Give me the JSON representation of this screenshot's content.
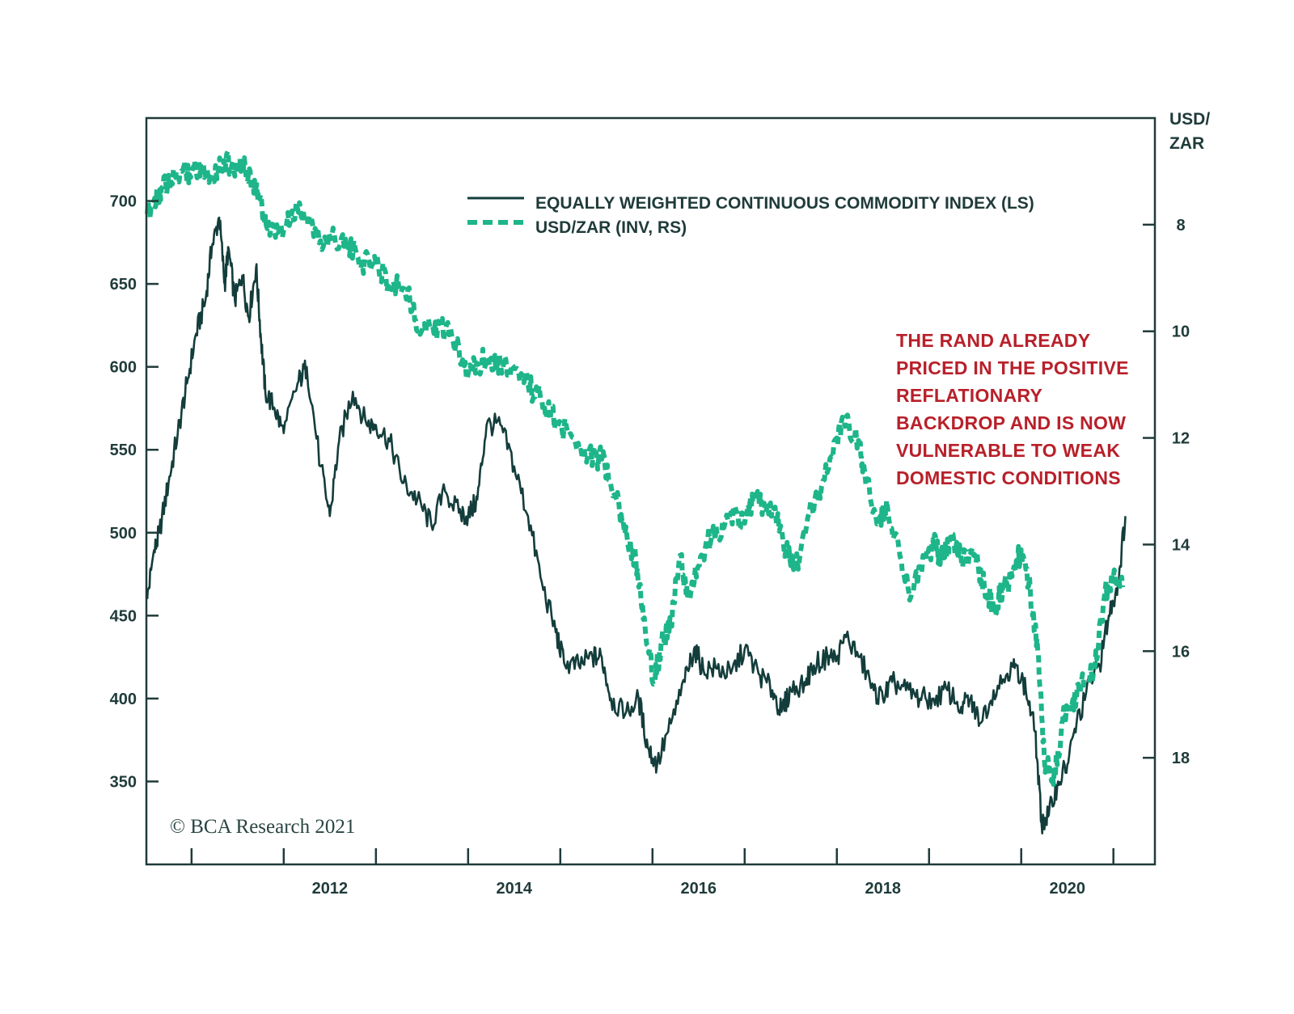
{
  "chart_data": {
    "type": "line",
    "title": "",
    "xlabel": "",
    "xlim": [
      2010.51,
      2021.45
    ],
    "x_tick_labels": [
      "2012",
      "2014",
      "2016",
      "2018",
      "2020"
    ],
    "x_ticks_years": [
      2011,
      2012,
      2013,
      2014,
      2015,
      2016,
      2017,
      2018,
      2019,
      2020,
      2021
    ],
    "left_axis": {
      "label": "",
      "ylim": [
        300,
        750
      ],
      "ticks": [
        350,
        400,
        450,
        500,
        550,
        600,
        650,
        700
      ]
    },
    "right_axis": {
      "label_line1": "USD/",
      "label_line2": "ZAR",
      "ylim": [
        6,
        20
      ],
      "inverted": true,
      "ticks": [
        8,
        10,
        12,
        14,
        16,
        18
      ]
    },
    "legend": {
      "placement": "top-center",
      "entries": [
        {
          "label": "EQUALLY WEIGHTED CONTINUOUS COMMODITY INDEX (LS)",
          "style": "solid",
          "color": "#133d3b"
        },
        {
          "label": "USD/ZAR (INV, RS)",
          "style": "dashed",
          "color": "#1db589"
        }
      ]
    },
    "series": [
      {
        "name": "EQUALLY WEIGHTED CONTINUOUS COMMODITY INDEX (LS)",
        "axis": "left",
        "color": "#133d3b",
        "x": [
          2010.52,
          2010.58,
          2010.65,
          2010.75,
          2010.85,
          2010.95,
          2011.05,
          2011.15,
          2011.22,
          2011.3,
          2011.36,
          2011.4,
          2011.47,
          2011.55,
          2011.62,
          2011.7,
          2011.75,
          2011.8,
          2011.9,
          2012.0,
          2012.15,
          2012.25,
          2012.4,
          2012.5,
          2012.6,
          2012.75,
          2012.9,
          2013.0,
          2013.15,
          2013.3,
          2013.45,
          2013.6,
          2013.75,
          2013.9,
          2014.0,
          2014.1,
          2014.2,
          2014.35,
          2014.5,
          2014.65,
          2014.8,
          2014.95,
          2015.05,
          2015.2,
          2015.35,
          2015.45,
          2015.55,
          2015.7,
          2015.85,
          2015.95,
          2016.05,
          2016.2,
          2016.35,
          2016.45,
          2016.55,
          2016.7,
          2016.85,
          2017.0,
          2017.15,
          2017.3,
          2017.4,
          2017.5,
          2017.65,
          2017.75,
          2017.9,
          2018.0,
          2018.1,
          2018.25,
          2018.4,
          2018.5,
          2018.6,
          2018.75,
          2018.9,
          2019.05,
          2019.2,
          2019.35,
          2019.45,
          2019.55,
          2019.7,
          2019.85,
          2019.95,
          2020.05,
          2020.15,
          2020.22,
          2020.3,
          2020.4,
          2020.5,
          2020.6,
          2020.75,
          2020.85,
          2020.95,
          2021.05,
          2021.13
        ],
        "values": [
          460,
          485,
          500,
          530,
          560,
          590,
          620,
          640,
          672,
          690,
          650,
          672,
          640,
          655,
          630,
          660,
          620,
          585,
          575,
          560,
          590,
          600,
          540,
          510,
          555,
          585,
          565,
          565,
          555,
          530,
          520,
          505,
          525,
          512,
          510,
          520,
          565,
          565,
          540,
          510,
          470,
          440,
          420,
          420,
          425,
          425,
          400,
          390,
          400,
          370,
          360,
          385,
          410,
          430,
          418,
          418,
          415,
          430,
          415,
          405,
          392,
          405,
          410,
          420,
          425,
          425,
          437,
          425,
          405,
          400,
          410,
          405,
          400,
          400,
          405,
          395,
          400,
          385,
          405,
          415,
          420,
          405,
          380,
          325,
          330,
          350,
          360,
          385,
          410,
          420,
          450,
          470,
          510
        ]
      },
      {
        "name": "USD/ZAR (INV, RS)",
        "axis": "right",
        "color": "#1db589",
        "x": [
          2010.52,
          2010.6,
          2010.68,
          2010.78,
          2010.9,
          2011.0,
          2011.1,
          2011.2,
          2011.35,
          2011.5,
          2011.62,
          2011.7,
          2011.78,
          2011.85,
          2012.0,
          2012.15,
          2012.25,
          2012.4,
          2012.55,
          2012.7,
          2012.85,
          2013.0,
          2013.15,
          2013.35,
          2013.45,
          2013.6,
          2013.75,
          2013.9,
          2014.0,
          2014.1,
          2014.25,
          2014.35,
          2014.5,
          2014.65,
          2014.8,
          2014.95,
          2015.15,
          2015.3,
          2015.45,
          2015.6,
          2015.7,
          2015.82,
          2015.9,
          2016.02,
          2016.1,
          2016.2,
          2016.3,
          2016.38,
          2016.5,
          2016.6,
          2016.7,
          2016.85,
          2017.0,
          2017.1,
          2017.2,
          2017.3,
          2017.45,
          2017.55,
          2017.7,
          2017.85,
          2018.0,
          2018.1,
          2018.25,
          2018.3,
          2018.45,
          2018.55,
          2018.7,
          2018.8,
          2018.95,
          2019.05,
          2019.15,
          2019.25,
          2019.35,
          2019.5,
          2019.6,
          2019.7,
          2019.8,
          2019.9,
          2020.0,
          2020.1,
          2020.18,
          2020.25,
          2020.35,
          2020.45,
          2020.55,
          2020.65,
          2020.8,
          2020.9,
          2021.0,
          2021.1
        ],
        "values": [
          7.8,
          7.5,
          7.3,
          7.2,
          7.0,
          7.0,
          6.9,
          7.1,
          6.8,
          6.9,
          7.0,
          7.3,
          7.8,
          8.2,
          8.1,
          7.7,
          7.8,
          8.3,
          8.2,
          8.4,
          8.7,
          8.7,
          9.1,
          9.2,
          10.0,
          9.9,
          10.0,
          10.3,
          10.8,
          10.6,
          10.5,
          10.6,
          10.7,
          11.0,
          11.3,
          11.7,
          12.0,
          12.3,
          12.4,
          13.1,
          13.8,
          14.3,
          15.4,
          16.6,
          15.8,
          15.5,
          14.2,
          15.0,
          14.4,
          13.9,
          13.8,
          13.4,
          13.6,
          13.1,
          13.3,
          13.3,
          14.1,
          14.5,
          13.4,
          12.8,
          12.0,
          11.6,
          12.2,
          12.6,
          13.6,
          13.3,
          14.3,
          15.0,
          14.3,
          14.0,
          14.3,
          13.8,
          14.3,
          14.2,
          14.8,
          15.2,
          14.8,
          14.6,
          14.1,
          14.9,
          16.0,
          18.0,
          18.5,
          17.3,
          17.0,
          16.6,
          16.3,
          15.0,
          14.6,
          14.8
        ]
      }
    ],
    "annotation": {
      "lines": [
        "THE RAND ALREADY",
        "PRICED IN THE POSITIVE",
        "REFLATIONARY",
        "BACKDROP AND IS NOW",
        "VULNERABLE TO WEAK",
        "DOMESTIC CONDITIONS"
      ],
      "color": "#b8202a"
    },
    "source": "© BCA Research 2021"
  }
}
